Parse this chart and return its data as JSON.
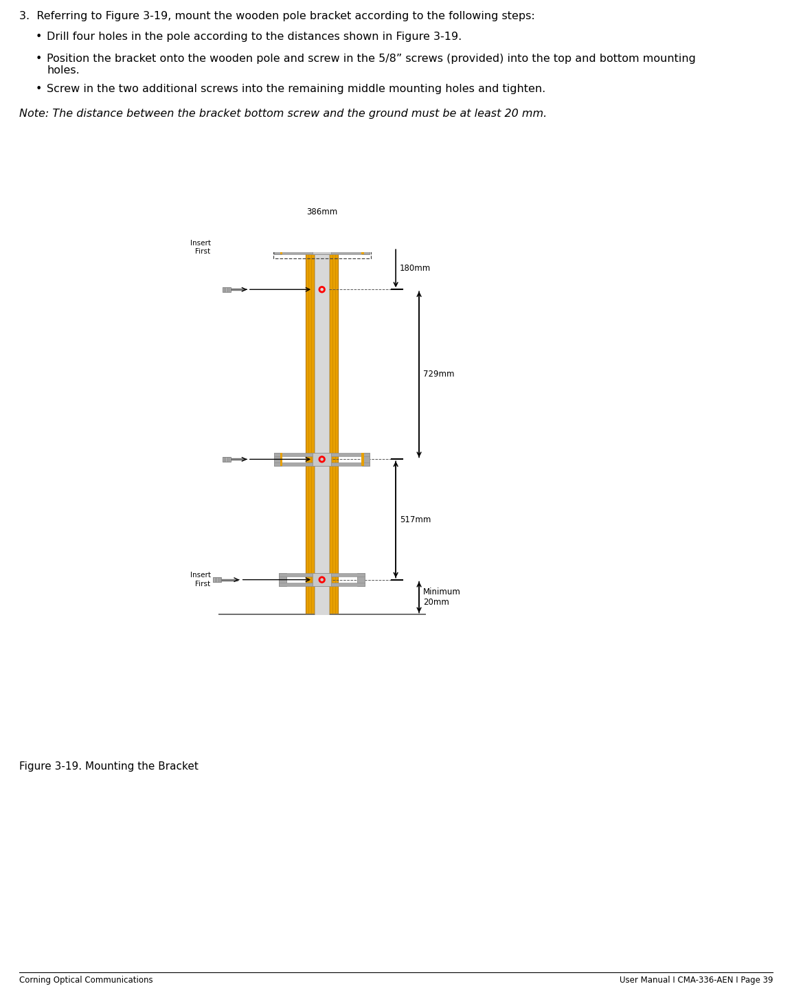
{
  "fig_width": 11.53,
  "fig_height": 14.48,
  "bg_color": "#ffffff",
  "title_text": "3.  Referring to Figure 3-19, mount the wooden pole bracket according to the following steps:",
  "bullet1": "Drill four holes in the pole according to the distances shown in Figure 3-19.",
  "bullet2": "Position the bracket onto the wooden pole and screw in the 5/8” screws (provided) into the top and bottom mounting\nholes.",
  "bullet3": "Screw in the two additional screws into the remaining middle mounting holes and tighten.",
  "note_text": "Note: The distance between the bracket bottom screw and the ground must be at least 20 mm.",
  "caption_text": "Figure 3-19. Mounting the Bracket",
  "footer_left": "Corning Optical Communications",
  "footer_right": "User Manual I CMA-336-AEN I Page 39",
  "pole_color": "#E8A000",
  "pole_dark": "#B87800",
  "pole_inner_color": "#D8D8D8",
  "bracket_color": "#A8A8A8",
  "bracket_light": "#C8C8C8",
  "bracket_dark": "#888888",
  "bracket_orange": "#E8A000",
  "ground_color": "#707070",
  "screw_body_color": "#909090",
  "hole_color": "#FF0000",
  "dim_label_180": "180mm",
  "dim_label_729": "729mm",
  "dim_label_517": "517mm",
  "dim_label_width": "386mm",
  "dim_label_min": "Minimum\n20mm",
  "label_insert": "Insert\nFirst"
}
